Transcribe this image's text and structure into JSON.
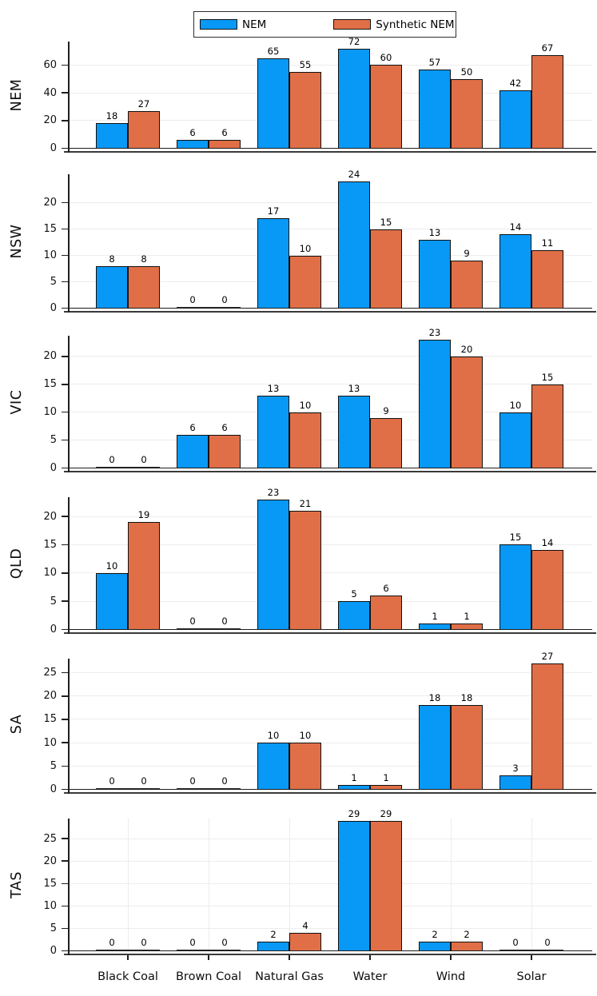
{
  "legend": {
    "items": [
      {
        "label": "NEM",
        "color": "#0899f7"
      },
      {
        "label": "Synthetic NEM",
        "color": "#e06f47"
      }
    ]
  },
  "chart_data": {
    "type": "bar",
    "title": "",
    "xlabel": "",
    "categories": [
      "Black Coal",
      "Brown Coal",
      "Natural Gas",
      "Water",
      "Wind",
      "Solar"
    ],
    "series_names": [
      "NEM",
      "Synthetic NEM"
    ],
    "series_colors": [
      "#0899f7",
      "#e06f47"
    ],
    "legend_position": "top-center",
    "grid": "horizontal light gray; bottom panel also has vertical gridlines at category centers",
    "bar_value_labels": true,
    "panels": [
      {
        "ylabel": "NEM",
        "ylim": [
          0,
          77
        ],
        "yticks": [
          0,
          20,
          40,
          60
        ],
        "series": [
          {
            "name": "NEM",
            "values": [
              18,
              6,
              65,
              72,
              57,
              42
            ]
          },
          {
            "name": "Synthetic NEM",
            "values": [
              27,
              6,
              55,
              60,
              50,
              67
            ]
          }
        ]
      },
      {
        "ylabel": "NSW",
        "ylim": [
          0,
          25.4
        ],
        "yticks": [
          0,
          5,
          10,
          15,
          20
        ],
        "series": [
          {
            "name": "NEM",
            "values": [
              8,
              0,
              17,
              24,
              13,
              14
            ]
          },
          {
            "name": "Synthetic NEM",
            "values": [
              8,
              0,
              10,
              15,
              9,
              11
            ]
          }
        ]
      },
      {
        "ylabel": "VIC",
        "ylim": [
          0,
          23.7
        ],
        "yticks": [
          0,
          5,
          10,
          15,
          20
        ],
        "series": [
          {
            "name": "NEM",
            "values": [
              0,
              6,
              13,
              13,
              23,
              10
            ]
          },
          {
            "name": "Synthetic NEM",
            "values": [
              0,
              6,
              10,
              9,
              20,
              15
            ]
          }
        ]
      },
      {
        "ylabel": "QLD",
        "ylim": [
          0,
          23.4
        ],
        "yticks": [
          0,
          5,
          10,
          15,
          20
        ],
        "series": [
          {
            "name": "NEM",
            "values": [
              10,
              0,
              23,
              5,
              1,
              15
            ]
          },
          {
            "name": "Synthetic NEM",
            "values": [
              19,
              0,
              21,
              6,
              1,
              14
            ]
          }
        ]
      },
      {
        "ylabel": "SA",
        "ylim": [
          0,
          28
        ],
        "yticks": [
          0,
          5,
          10,
          15,
          20,
          25
        ],
        "series": [
          {
            "name": "NEM",
            "values": [
              0,
              0,
              10,
              1,
              18,
              3
            ]
          },
          {
            "name": "Synthetic NEM",
            "values": [
              0,
              0,
              10,
              1,
              18,
              27
            ]
          }
        ]
      },
      {
        "ylabel": "TAS",
        "ylim": [
          0,
          29.5
        ],
        "yticks": [
          0,
          5,
          10,
          15,
          20,
          25
        ],
        "vertical_grid": true,
        "series": [
          {
            "name": "NEM",
            "values": [
              0,
              0,
              2,
              29,
              2,
              0
            ]
          },
          {
            "name": "Synthetic NEM",
            "values": [
              0,
              0,
              4,
              29,
              2,
              0
            ]
          }
        ]
      }
    ]
  }
}
